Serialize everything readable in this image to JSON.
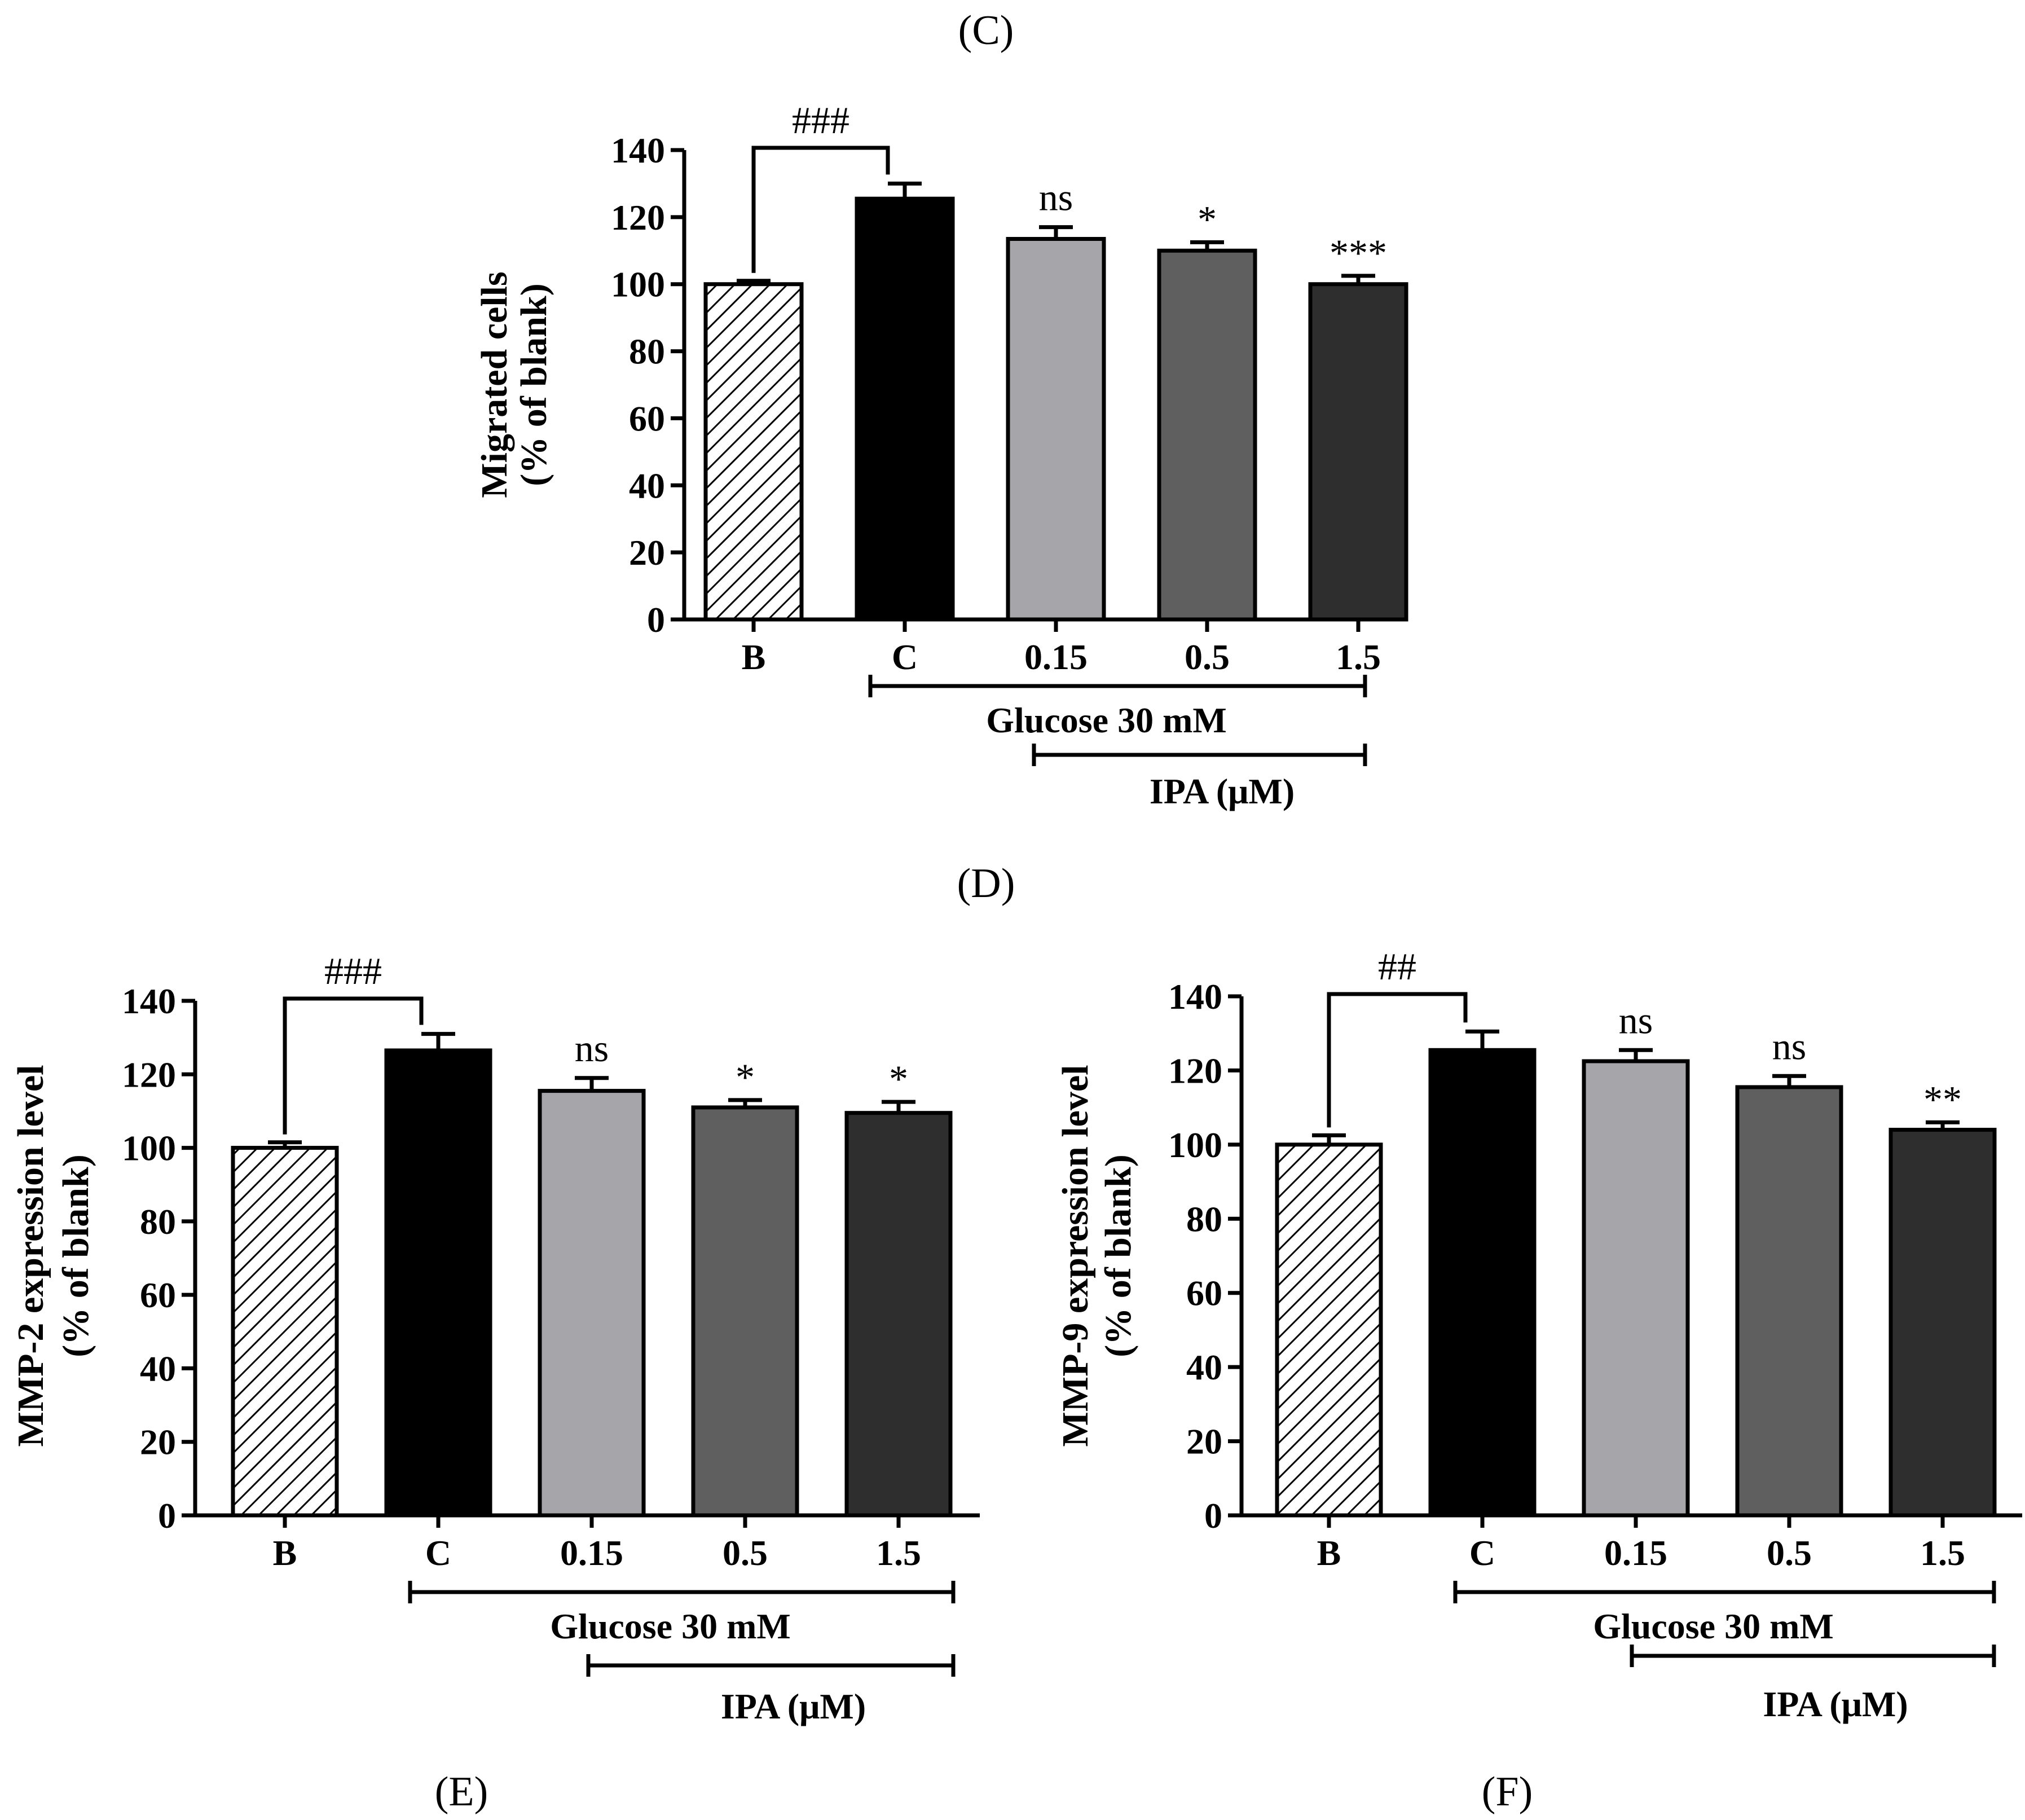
{
  "panel_labels": [
    "(C)",
    "(D)",
    "(E)",
    "(F)"
  ],
  "colors": {
    "blank": "#ffffff",
    "control": "#000000",
    "ipa_0_15": "#a6a5a9",
    "ipa_0_5": "#5f5f5f",
    "ipa_1_5": "#2e2e2e",
    "stroke": "#000000"
  },
  "chart_data": [
    {
      "id": "D",
      "type": "bar",
      "categories": [
        "B",
        "C",
        "0.15",
        "0.5",
        "1.5"
      ],
      "values": [
        100,
        125.5,
        113.5,
        110,
        100
      ],
      "errors": [
        1,
        4.5,
        3.5,
        2.5,
        2.5
      ],
      "significance": [
        "",
        "",
        "ns",
        "*",
        "***"
      ],
      "comparison_label": "###",
      "ylabel": [
        "Migrated cells",
        "(% of blank)"
      ],
      "ylim": [
        0,
        140
      ],
      "yticks": [
        "0",
        "20",
        "40",
        "60",
        "80",
        "100",
        "120",
        "140"
      ],
      "group_labels": [
        "Glucose 30 mM",
        "IPA (μM)"
      ]
    },
    {
      "id": "E",
      "type": "bar",
      "categories": [
        "B",
        "C",
        "0.15",
        "0.5",
        "1.5"
      ],
      "values": [
        100,
        126.5,
        115.5,
        111,
        109.5
      ],
      "errors": [
        1.5,
        4.5,
        3.5,
        2,
        3
      ],
      "significance": [
        "",
        "",
        "ns",
        "*",
        "*"
      ],
      "comparison_label": "###",
      "ylabel": [
        "MMP-2 expression level",
        "(% of blank)"
      ],
      "ylim": [
        0,
        140
      ],
      "yticks": [
        "0",
        "20",
        "40",
        "60",
        "80",
        "100",
        "120",
        "140"
      ],
      "group_labels": [
        "Glucose 30 mM",
        "IPA (μM)"
      ]
    },
    {
      "id": "F",
      "type": "bar",
      "categories": [
        "B",
        "C",
        "0.15",
        "0.5",
        "1.5"
      ],
      "values": [
        100,
        125.5,
        122.5,
        115.5,
        104
      ],
      "errors": [
        2.5,
        5,
        3,
        3,
        2
      ],
      "significance": [
        "",
        "",
        "ns",
        "ns",
        "**"
      ],
      "comparison_label": "##",
      "ylabel": [
        "MMP-9 expression level",
        "(% of blank)"
      ],
      "ylim": [
        0,
        140
      ],
      "yticks": [
        "0",
        "20",
        "40",
        "60",
        "80",
        "100",
        "120",
        "140"
      ],
      "group_labels": [
        "Glucose 30 mM",
        "IPA (μM)"
      ]
    }
  ]
}
